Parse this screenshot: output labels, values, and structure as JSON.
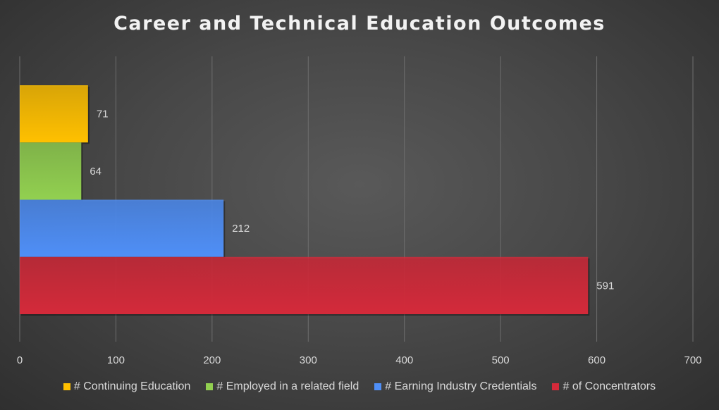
{
  "chart_data": {
    "type": "bar",
    "orientation": "horizontal",
    "title": "Career and Technical Education Outcomes",
    "xlim": [
      0,
      700
    ],
    "x_ticks": [
      0,
      100,
      200,
      300,
      400,
      500,
      600,
      700
    ],
    "grid": true,
    "legend_position": "bottom",
    "series": [
      {
        "name": "# Continuing Education",
        "value": 71,
        "color": "#ffc000"
      },
      {
        "name": "# Employed in a related field",
        "value": 64,
        "color": "#92d050"
      },
      {
        "name": "# Earning Industry Credentials",
        "value": 212,
        "color": "#4f8ff7"
      },
      {
        "name": "# of Concentrators",
        "value": 591,
        "color": "#d42a3a"
      }
    ]
  }
}
